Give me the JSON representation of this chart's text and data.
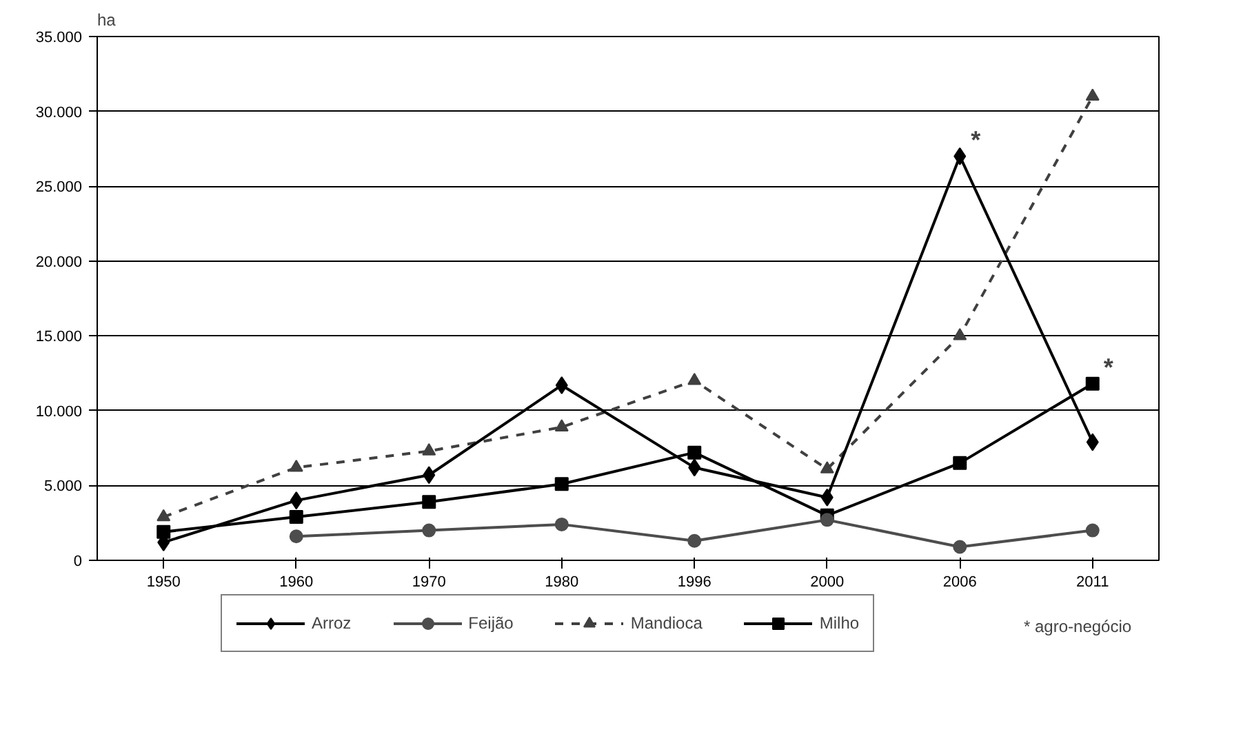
{
  "chart_data": {
    "type": "line",
    "ylabel": "ha",
    "categories": [
      "1950",
      "1960",
      "1970",
      "1980",
      "1996",
      "2000",
      "2006",
      "2011"
    ],
    "series": [
      {
        "name": "Arroz",
        "color": "#000000",
        "marker": "diamond",
        "line_style": "solid",
        "values": [
          1200,
          4000,
          5700,
          11700,
          6200,
          4200,
          27000,
          7900
        ]
      },
      {
        "name": "Feijão",
        "color": "#4d4d4d",
        "marker": "circle",
        "line_style": "solid",
        "values": [
          null,
          1600,
          2000,
          2400,
          1300,
          2700,
          900,
          2000
        ]
      },
      {
        "name": "Mandioca",
        "color": "#404040",
        "marker": "triangle",
        "line_style": "dashed",
        "values": [
          2900,
          6200,
          7300,
          8900,
          12000,
          6100,
          15000,
          31000
        ]
      },
      {
        "name": "Milho",
        "color": "#000000",
        "marker": "square",
        "line_style": "solid",
        "values": [
          1900,
          2900,
          3900,
          5100,
          7200,
          3000,
          6500,
          11800
        ]
      }
    ],
    "ylim": [
      0,
      35000
    ],
    "yticks": [
      {
        "value": 0,
        "label": "0"
      },
      {
        "value": 5000,
        "label": "5.000"
      },
      {
        "value": 10000,
        "label": "10.000"
      },
      {
        "value": 15000,
        "label": "15.000"
      },
      {
        "value": 20000,
        "label": "20.000"
      },
      {
        "value": 25000,
        "label": "25.000"
      },
      {
        "value": 30000,
        "label": "30.000"
      },
      {
        "value": 35000,
        "label": "35.000"
      }
    ],
    "grid": "y",
    "legend": "bottom",
    "annotations": [
      {
        "text": "*",
        "x": "2006",
        "y": 27000
      },
      {
        "text": "*",
        "x": "2011",
        "y": 11800
      },
      "* agro-negócio"
    ]
  }
}
